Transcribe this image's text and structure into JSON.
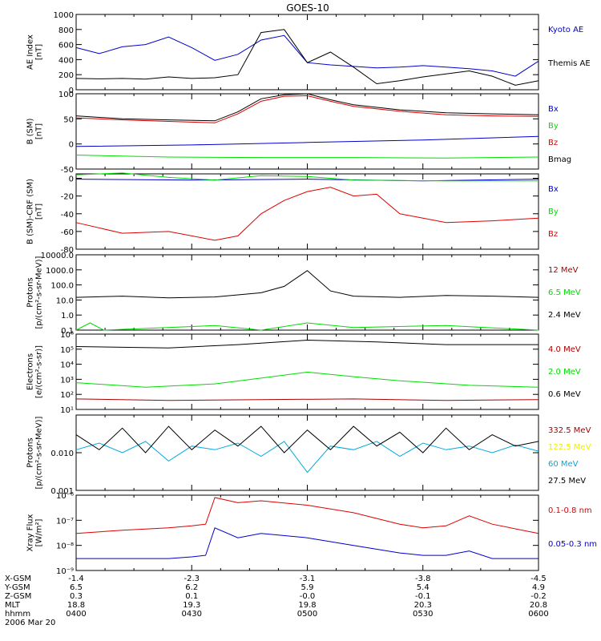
{
  "title": "GOES-10",
  "colors": {
    "axis": "#000000",
    "black": "#000000",
    "blue": "#0000cc",
    "green": "#00dd00",
    "red": "#dd0000",
    "darkred": "#aa0000",
    "yellow": "#eeee00",
    "cyan": "#00aadd"
  },
  "chart_data": [
    {
      "type": "line",
      "ylabel": "AE Index\n[nT]",
      "scale": "linear",
      "ylim": [
        0,
        1000
      ],
      "yticks": [
        0,
        200,
        400,
        600,
        800,
        1000
      ],
      "ytick_labels": [
        "0",
        "200",
        "400",
        "600",
        "800",
        "1000"
      ],
      "series": [
        {
          "name": "Kyoto AE",
          "color": "blue",
          "x": [
            0,
            0.05,
            0.1,
            0.15,
            0.2,
            0.25,
            0.3,
            0.35,
            0.4,
            0.45,
            0.5,
            0.55,
            0.6,
            0.65,
            0.7,
            0.75,
            0.8,
            0.85,
            0.9,
            0.95,
            1
          ],
          "y": [
            560,
            480,
            570,
            600,
            700,
            560,
            390,
            470,
            660,
            720,
            360,
            330,
            310,
            290,
            300,
            320,
            300,
            280,
            250,
            180,
            380
          ]
        },
        {
          "name": "Themis AE",
          "color": "black",
          "x": [
            0,
            0.05,
            0.1,
            0.15,
            0.2,
            0.25,
            0.3,
            0.35,
            0.4,
            0.45,
            0.5,
            0.55,
            0.6,
            0.65,
            0.7,
            0.75,
            0.8,
            0.85,
            0.9,
            0.95,
            1
          ],
          "y": [
            150,
            145,
            150,
            140,
            170,
            150,
            160,
            200,
            760,
            800,
            360,
            500,
            300,
            80,
            120,
            170,
            210,
            250,
            180,
            60,
            120
          ]
        }
      ]
    },
    {
      "type": "line",
      "ylabel": "B (SM)\n[nT]",
      "scale": "linear",
      "ylim": [
        -50,
        100
      ],
      "yticks": [
        -50,
        0,
        50,
        100
      ],
      "ytick_labels": [
        "-50",
        "0",
        "50",
        "100"
      ],
      "series": [
        {
          "name": "Bx",
          "color": "blue",
          "x": [
            0,
            0.25,
            0.5,
            0.75,
            1
          ],
          "y": [
            -5,
            -2,
            3,
            8,
            15
          ]
        },
        {
          "name": "By",
          "color": "green",
          "x": [
            0,
            0.2,
            0.4,
            0.6,
            0.8,
            1
          ],
          "y": [
            -22,
            -26,
            -27,
            -27,
            -28,
            -26
          ]
        },
        {
          "name": "Bz",
          "color": "red",
          "x": [
            0,
            0.1,
            0.2,
            0.3,
            0.35,
            0.4,
            0.45,
            0.5,
            0.55,
            0.6,
            0.7,
            0.8,
            0.9,
            1
          ],
          "y": [
            52,
            48,
            45,
            42,
            60,
            85,
            95,
            96,
            85,
            75,
            65,
            58,
            56,
            55
          ]
        },
        {
          "name": "Bmag",
          "color": "black",
          "x": [
            0,
            0.1,
            0.2,
            0.3,
            0.35,
            0.4,
            0.45,
            0.5,
            0.55,
            0.6,
            0.7,
            0.8,
            0.9,
            1
          ],
          "y": [
            56,
            50,
            48,
            46,
            64,
            90,
            98,
            100,
            88,
            78,
            68,
            62,
            60,
            58
          ]
        }
      ]
    },
    {
      "type": "line",
      "ylabel": "B (SM)-CRF (SM)\n[nT]",
      "scale": "linear",
      "ylim": [
        -80,
        5
      ],
      "yticks": [
        -80,
        -60,
        -40,
        -20,
        0
      ],
      "ytick_labels": [
        "-80",
        "-60",
        "-40",
        "-20",
        "0"
      ],
      "series": [
        {
          "name": "Bx",
          "color": "blue",
          "x": [
            0,
            0.25,
            0.5,
            0.75,
            1
          ],
          "y": [
            -1,
            -2,
            -1,
            -3,
            -1
          ]
        },
        {
          "name": "By",
          "color": "green",
          "x": [
            0,
            0.1,
            0.2,
            0.3,
            0.4,
            0.5,
            0.6,
            0.8,
            1
          ],
          "y": [
            4,
            6,
            1,
            -2,
            3,
            2,
            -2,
            -3,
            -3
          ]
        },
        {
          "name": "Bz",
          "color": "red",
          "x": [
            0,
            0.1,
            0.2,
            0.3,
            0.35,
            0.4,
            0.45,
            0.5,
            0.55,
            0.6,
            0.65,
            0.7,
            0.75,
            0.8,
            0.9,
            1
          ],
          "y": [
            -50,
            -62,
            -60,
            -70,
            -65,
            -40,
            -25,
            -15,
            -10,
            -20,
            -18,
            -40,
            -45,
            -50,
            -48,
            -45
          ]
        }
      ]
    },
    {
      "type": "line",
      "ylabel": "Protons\n[p/(cm²-s-sr-MeV)]",
      "scale": "log",
      "ylim": [
        0.1,
        10000
      ],
      "yticks": [
        0.1,
        1,
        10,
        100,
        1000,
        10000
      ],
      "ytick_labels": [
        "0.1",
        "1.0",
        "10.0",
        "100.0",
        "1000.0",
        "10000.0"
      ],
      "series": [
        {
          "name": "12 MeV",
          "color": "darkred",
          "x": [],
          "y": []
        },
        {
          "name": "6.5 MeV",
          "color": "green",
          "x": [
            0,
            0.03,
            0.06,
            0.3,
            0.4,
            0.5,
            0.6,
            0.8,
            1
          ],
          "y": [
            0.1,
            0.3,
            0.1,
            0.2,
            0.1,
            0.3,
            0.15,
            0.2,
            0.1
          ]
        },
        {
          "name": "2.4 MeV",
          "color": "black",
          "x": [
            0,
            0.1,
            0.2,
            0.3,
            0.4,
            0.45,
            0.5,
            0.55,
            0.6,
            0.7,
            0.8,
            0.9,
            1
          ],
          "y": [
            15,
            18,
            14,
            16,
            30,
            80,
            900,
            40,
            18,
            15,
            20,
            18,
            15
          ]
        }
      ]
    },
    {
      "type": "line",
      "ylabel": "Electrons\n[e/(cm²-s-sr)]",
      "scale": "log",
      "ylim": [
        10,
        1000000
      ],
      "yticks": [
        10,
        100,
        1000,
        10000,
        100000,
        1000000
      ],
      "ytick_labels": [
        "10¹",
        "10²",
        "10³",
        "10⁴",
        "10⁵",
        "10⁶"
      ],
      "series": [
        {
          "name": "4.0 MeV",
          "color": "darkred",
          "x": [
            0,
            0.2,
            0.4,
            0.6,
            0.8,
            1
          ],
          "y": [
            50,
            40,
            45,
            50,
            40,
            45
          ]
        },
        {
          "name": "2.0 MeV",
          "color": "green",
          "x": [
            0,
            0.15,
            0.3,
            0.4,
            0.5,
            0.6,
            0.7,
            0.85,
            1
          ],
          "y": [
            600,
            300,
            500,
            1200,
            3000,
            1500,
            800,
            400,
            300
          ]
        },
        {
          "name": "0.6 MeV",
          "color": "black",
          "x": [
            0,
            0.2,
            0.35,
            0.5,
            0.65,
            0.8,
            1
          ],
          "y": [
            150000,
            120000,
            200000,
            400000,
            300000,
            200000,
            200000
          ]
        }
      ]
    },
    {
      "type": "line",
      "ylabel": "Protons\n[p/(cm²-s-sr-MeV)]",
      "scale": "log",
      "ylim": [
        0.001,
        0.1
      ],
      "yticks": [
        0.001,
        0.01
      ],
      "ytick_labels": [
        "0.001",
        "0.010"
      ],
      "series": [
        {
          "name": "332.5 MeV",
          "color": "darkred",
          "x": [],
          "y": []
        },
        {
          "name": "122.5 MeV",
          "color": "yellow",
          "x": [],
          "y": []
        },
        {
          "name": "60 MeV",
          "color": "cyan",
          "x": [
            0,
            0.05,
            0.1,
            0.15,
            0.2,
            0.25,
            0.3,
            0.35,
            0.4,
            0.45,
            0.5,
            0.55,
            0.6,
            0.65,
            0.7,
            0.75,
            0.8,
            0.85,
            0.9,
            0.95,
            1
          ],
          "y": [
            0.012,
            0.018,
            0.01,
            0.02,
            0.006,
            0.015,
            0.012,
            0.018,
            0.008,
            0.02,
            0.003,
            0.015,
            0.012,
            0.02,
            0.008,
            0.018,
            0.012,
            0.015,
            0.01,
            0.016,
            0.011
          ]
        },
        {
          "name": "27.5 MeV",
          "color": "black",
          "x": [
            0,
            0.05,
            0.1,
            0.15,
            0.2,
            0.25,
            0.3,
            0.35,
            0.4,
            0.45,
            0.5,
            0.55,
            0.6,
            0.65,
            0.7,
            0.75,
            0.8,
            0.85,
            0.9,
            0.95,
            1
          ],
          "y": [
            0.03,
            0.012,
            0.045,
            0.01,
            0.05,
            0.012,
            0.04,
            0.015,
            0.05,
            0.01,
            0.04,
            0.012,
            0.05,
            0.015,
            0.035,
            0.01,
            0.045,
            0.012,
            0.03,
            0.015,
            0.02
          ]
        }
      ]
    },
    {
      "type": "line",
      "ylabel": "Xray Flux\n[W/m²]",
      "scale": "log",
      "ylim": [
        1e-09,
        1e-06
      ],
      "yticks": [
        1e-09,
        1e-08,
        1e-07,
        1e-06
      ],
      "ytick_labels": [
        "10⁻⁹",
        "10⁻⁸",
        "10⁻⁷",
        "10⁻⁶"
      ],
      "series": [
        {
          "name": "0.1-0.8 nm",
          "color": "red",
          "x": [
            0,
            0.1,
            0.2,
            0.25,
            0.28,
            0.3,
            0.35,
            0.4,
            0.5,
            0.6,
            0.7,
            0.75,
            0.8,
            0.85,
            0.9,
            1
          ],
          "y": [
            3e-08,
            4e-08,
            5e-08,
            6e-08,
            7e-08,
            8e-07,
            5e-07,
            6e-07,
            4e-07,
            2e-07,
            7e-08,
            5e-08,
            6e-08,
            1.5e-07,
            7e-08,
            3e-08
          ]
        },
        {
          "name": "0.05-0.3 nm",
          "color": "blue",
          "x": [
            0,
            0.1,
            0.2,
            0.25,
            0.28,
            0.3,
            0.35,
            0.4,
            0.5,
            0.6,
            0.7,
            0.75,
            0.8,
            0.85,
            0.9,
            1
          ],
          "y": [
            3e-09,
            3e-09,
            3e-09,
            3.5e-09,
            4e-09,
            5e-08,
            2e-08,
            3e-08,
            2e-08,
            1e-08,
            5e-09,
            4e-09,
            4e-09,
            6e-09,
            3e-09,
            3e-09
          ]
        }
      ]
    }
  ],
  "footer": {
    "row_labels": [
      "X-GSM",
      "Y-GSM",
      "Z-GSM",
      "MLT",
      "hhmm",
      "2006 Mar 20"
    ],
    "columns": [
      {
        "values": [
          "-1.4",
          "6.5",
          "0.3",
          "18.8",
          "0400"
        ]
      },
      {
        "values": [
          "-2.3",
          "6.2",
          "0.1",
          "19.3",
          "0430"
        ]
      },
      {
        "values": [
          "-3.1",
          "5.9",
          "-0.0",
          "19.8",
          "0500"
        ]
      },
      {
        "values": [
          "-3.8",
          "5.4",
          "-0.1",
          "20.3",
          "0530"
        ]
      },
      {
        "values": [
          "-4.5",
          "4.9",
          "-0.2",
          "20.8",
          "0600"
        ]
      }
    ]
  }
}
